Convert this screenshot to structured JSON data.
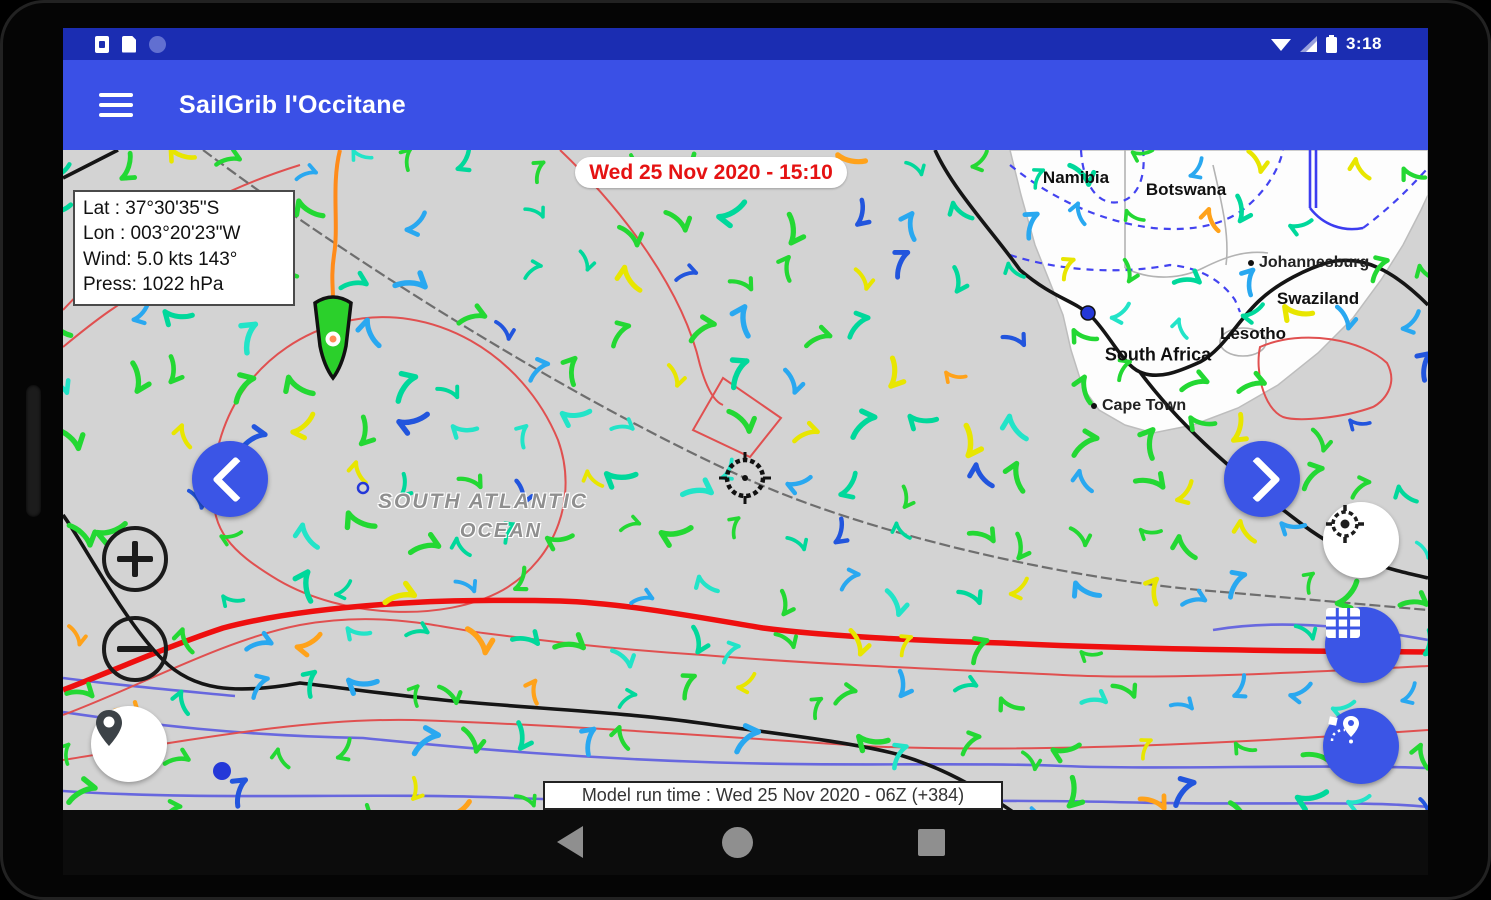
{
  "status_bar": {
    "time": "3:18",
    "left_icons": [
      "notification-icon",
      "file-icon",
      "dim-app-icon"
    ],
    "right_icons": [
      "wifi-icon",
      "cell-signal-icon",
      "battery-icon"
    ]
  },
  "app_bar": {
    "title": "SailGrib l'Occitane"
  },
  "map": {
    "timestamp": "Wed 25 Nov 2020 - 15:10",
    "info_box": {
      "lat": "Lat :  37°30'35\"S",
      "lon": "Lon :  003°20'23\"W",
      "wind": "Wind: 5.0 kts 143°",
      "press": "Press: 1022 hPa"
    },
    "ocean_label": {
      "line1": "SOUTH ATLANTIC",
      "line2": "OCEAN"
    },
    "countries": [
      {
        "name": "Namibia"
      },
      {
        "name": "Botswana"
      },
      {
        "name": "Swaziland"
      },
      {
        "name": "Lesotho"
      },
      {
        "name": "South Africa"
      }
    ],
    "cities": [
      {
        "name": "Johannesburg"
      },
      {
        "name": "Cape Town"
      }
    ],
    "model_run": "Model run time : Wed 25 Nov 2020 - 06Z (+384)"
  },
  "colors": {
    "status_bar": "#1b2db2",
    "app_bar": "#3a50e6",
    "accent_blue": "#3b55e6",
    "map_bg": "#d3d3d3",
    "timestamp_red": "#e51212",
    "boat_green": "#2bd02b",
    "track_orange": "#ff8b1a",
    "barb_palette": [
      "#23d833",
      "#00d89b",
      "#22e4c8",
      "#29a8f0",
      "#2255dd",
      "#e8e600",
      "#ffa21a"
    ]
  },
  "nav_bar": {
    "icons": [
      "back-icon",
      "home-icon",
      "recents-icon"
    ]
  }
}
